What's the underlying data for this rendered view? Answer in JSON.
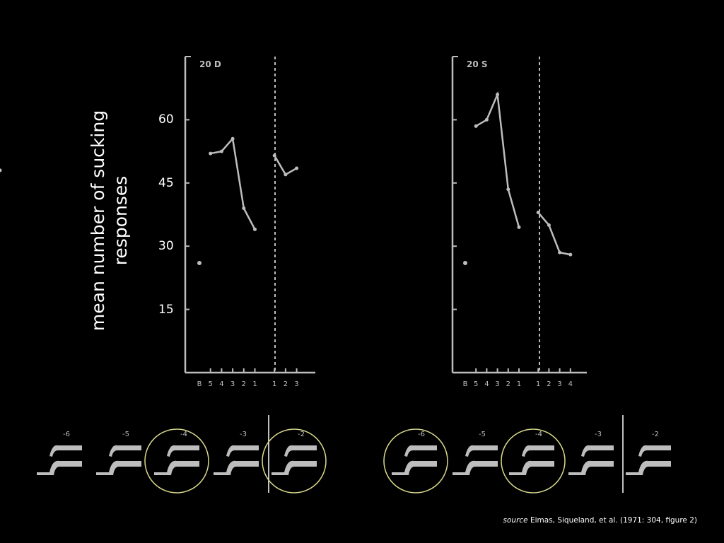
{
  "y_axis_label": "mean number of sucking responses",
  "y_ticks": [
    "60",
    "45",
    "30",
    "15"
  ],
  "chart_data": [
    {
      "type": "line",
      "panel_label": "20 D",
      "x_ticks": [
        "B",
        "5",
        "4",
        "3",
        "2",
        "1",
        "1",
        "2",
        "3"
      ],
      "baseline": 26,
      "series": [
        {
          "values_pre": [
            52,
            52.5,
            55.5,
            39,
            34
          ]
        },
        {
          "values_post": [
            51.5,
            47,
            48.5,
            48
          ]
        }
      ],
      "ylim": [
        0,
        75
      ]
    },
    {
      "type": "line",
      "panel_label": "20 S",
      "x_ticks": [
        "B",
        "5",
        "4",
        "3",
        "2",
        "1",
        "1",
        "2",
        "3",
        "4"
      ],
      "baseline": 26,
      "series": [
        {
          "values_pre": [
            58.5,
            60,
            66,
            43.5,
            34.5
          ]
        },
        {
          "values_post": [
            38,
            35,
            28.5,
            28
          ]
        }
      ],
      "ylim": [
        0,
        75
      ]
    }
  ],
  "stimuli_left": [
    "-6",
    "-5",
    "-4",
    "-3",
    "-2"
  ],
  "stimuli_right": [
    "-6",
    "-5",
    "-4",
    "-3",
    "-2"
  ],
  "circled_left": [
    "-4",
    "-2"
  ],
  "circled_right": [
    "-6",
    "-4"
  ],
  "colors": {
    "background": "#000000",
    "plot": "#bdbdbd",
    "circle": "#d9d98c",
    "text": "#ffffff"
  },
  "source": {
    "italic": "source",
    "text": " Eimas, Siqueland, et al. (1971: 304, figure 2)"
  }
}
